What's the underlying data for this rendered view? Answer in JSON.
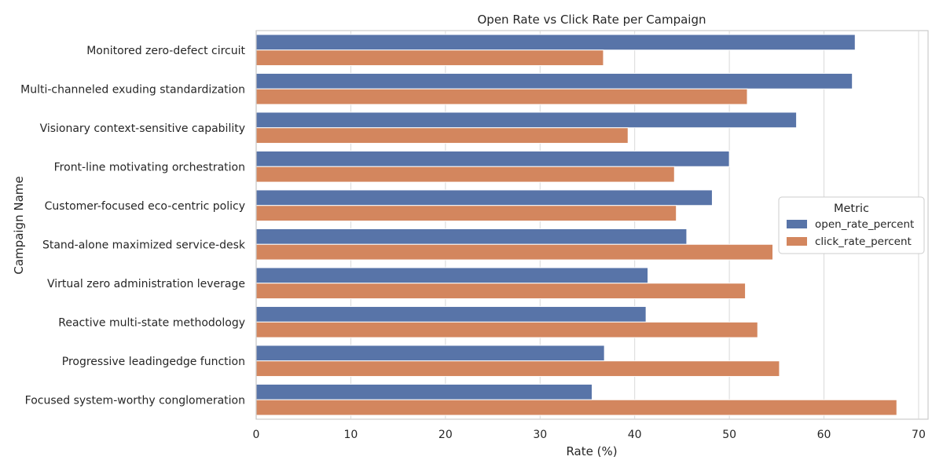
{
  "chart_data": {
    "type": "bar",
    "orientation": "horizontal",
    "title": "Open Rate vs Click Rate per Campaign",
    "xlabel": "Rate (%)",
    "ylabel": "Campaign Name",
    "xlim": [
      0,
      71
    ],
    "xticks": [
      0,
      10,
      20,
      30,
      40,
      50,
      60,
      70
    ],
    "grid": true,
    "legend": {
      "title": "Metric",
      "placement": "center-right"
    },
    "categories": [
      "Monitored zero-defect circuit",
      "Multi-channeled exuding standardization",
      "Visionary context-sensitive capability",
      "Front-line motivating orchestration",
      "Customer-focused eco-centric policy",
      "Stand-alone maximized service-desk",
      "Virtual zero administration leverage",
      "Reactive multi-state methodology",
      "Progressive leadingedge function",
      "Focused system-worthy conglomeration"
    ],
    "series": [
      {
        "name": "open_rate_percent",
        "color": "#5874a8",
        "values": [
          63.3,
          63.0,
          57.1,
          50.0,
          48.2,
          45.5,
          41.4,
          41.2,
          36.8,
          35.5
        ]
      },
      {
        "name": "click_rate_percent",
        "color": "#d3865e",
        "values": [
          36.7,
          51.9,
          39.3,
          44.2,
          44.4,
          54.6,
          51.7,
          53.0,
          55.3,
          67.7
        ]
      }
    ]
  }
}
